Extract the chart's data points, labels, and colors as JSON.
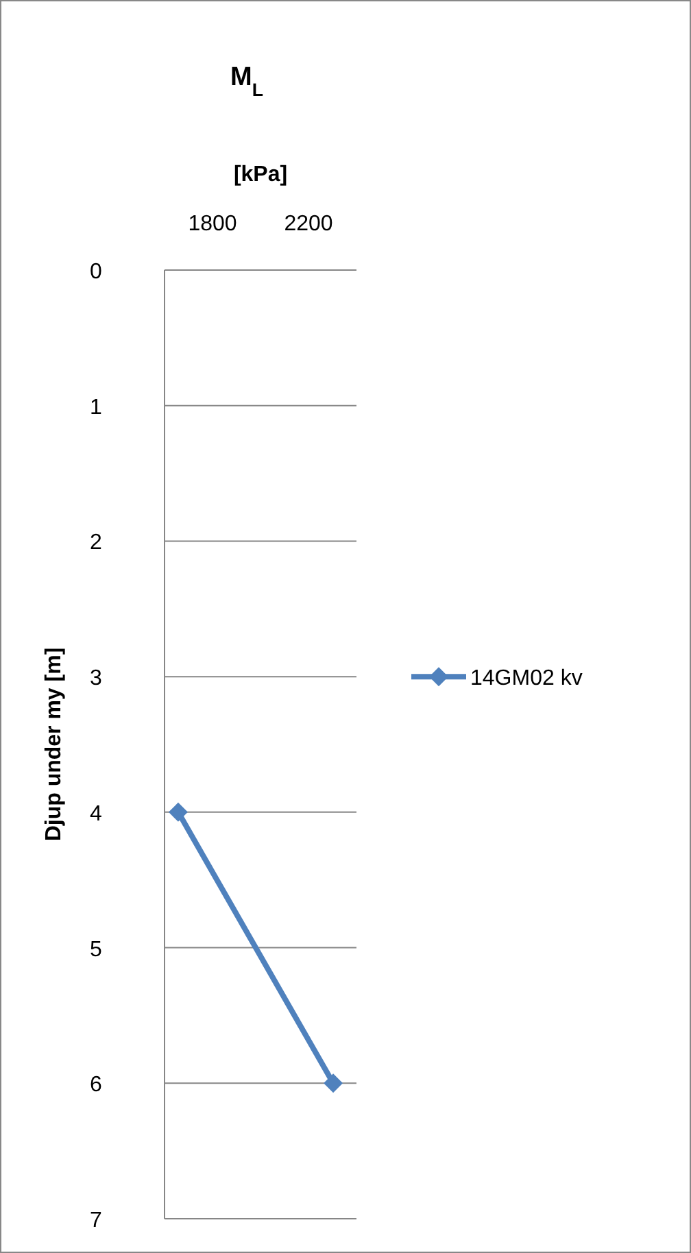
{
  "chart_data": {
    "type": "line",
    "title": "M$_{L}$",
    "xlabel": "[kPa]",
    "ylabel": "Djup under my [m]",
    "xlim": [
      1600,
      2400
    ],
    "xticks": [
      1800,
      2200
    ],
    "ylim": [
      7,
      0
    ],
    "yticks": [
      0,
      1,
      2,
      3,
      4,
      5,
      6,
      7
    ],
    "grid": "y",
    "legend": "right",
    "marker": "diamond",
    "line_style": "solid",
    "series": [
      {
        "name": "14GM02 kv",
        "color": "#4f81bd",
        "x": [
          1657,
          2303
        ],
        "values": [
          4,
          6
        ]
      }
    ]
  }
}
